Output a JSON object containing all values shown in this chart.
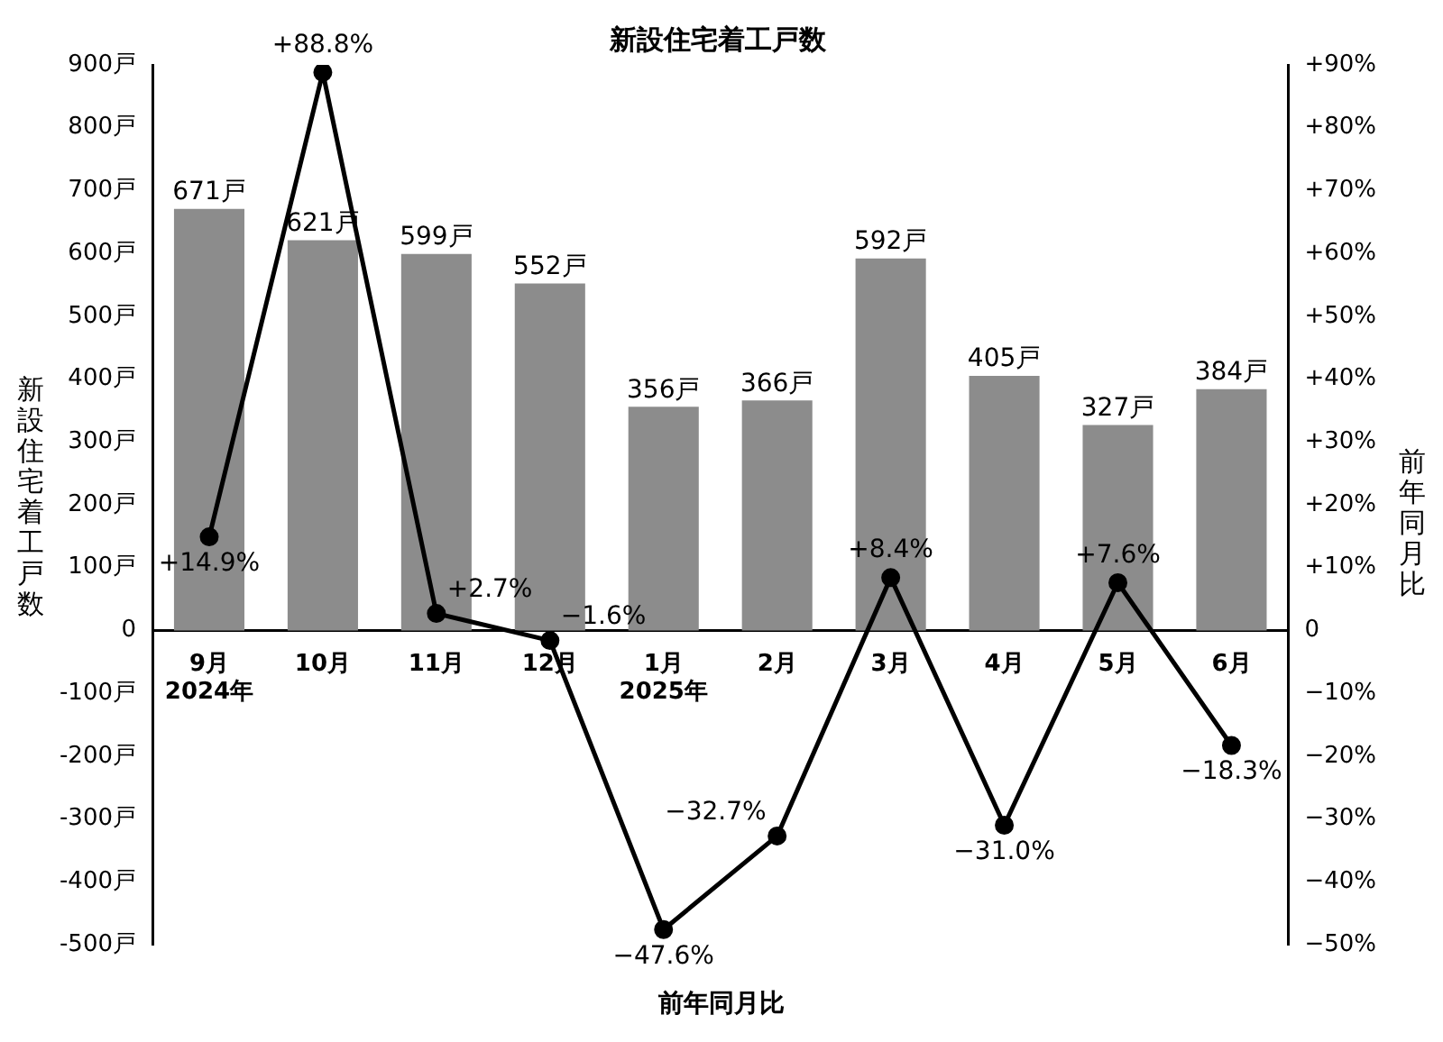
{
  "chart_data": {
    "type": "bar",
    "title": "新設住宅着工戸数",
    "ylabel": "新設住宅着工戸数",
    "y2label": "前年同月比",
    "categories": [
      "9月\n2024年",
      "10月",
      "11月",
      "12月",
      "1月\n2025年",
      "2月",
      "3月",
      "4月",
      "5月",
      "6月"
    ],
    "series": [
      {
        "color": "#8c8c8c",
        "values": [
          671,
          621,
          599,
          552,
          356,
          366,
          592,
          405,
          327,
          384
        ],
        "value_labels": [
          "671戸",
          "621戸",
          "599戸",
          "552戸",
          "356戸",
          "366戸",
          "592戸",
          "405戸",
          "327戸",
          "384戸"
        ]
      },
      {
        "type": "line",
        "name": "前年同月比",
        "axis": "y2",
        "color": "#000000",
        "values": [
          14.9,
          88.8,
          2.7,
          -1.6,
          -47.6,
          -32.7,
          8.4,
          -31.0,
          7.6,
          -18.3
        ],
        "value_labels": [
          "+14.9%",
          "+88.8%",
          "+2.7%",
          "−1.6%",
          "−47.6%",
          "−32.7%",
          "+8.4%",
          "−31.0%",
          "+7.6%",
          "−18.3%"
        ]
      }
    ],
    "ylim": [
      -500,
      900
    ],
    "yticks": [
      {
        "value": -500,
        "label": "-500戸"
      },
      {
        "value": -400,
        "label": "-400戸"
      },
      {
        "value": -300,
        "label": "-300戸"
      },
      {
        "value": -200,
        "label": "-200戸"
      },
      {
        "value": -100,
        "label": "-100戸"
      },
      0,
      {
        "value": 100,
        "label": "100戸"
      },
      {
        "value": 200,
        "label": "200戸"
      },
      {
        "value": 300,
        "label": "300戸"
      },
      {
        "value": 400,
        "label": "400戸"
      },
      {
        "value": 500,
        "label": "500戸"
      },
      {
        "value": 600,
        "label": "600戸"
      },
      {
        "value": 700,
        "label": "700戸"
      },
      {
        "value": 800,
        "label": "800戸"
      },
      {
        "value": 900,
        "label": "900戸"
      }
    ],
    "y2lim": [
      -50,
      90
    ],
    "y2ticks": [
      {
        "value": -50,
        "label": "−50%"
      },
      {
        "value": -40,
        "label": "−40%"
      },
      {
        "value": -30,
        "label": "−30%"
      },
      {
        "value": -20,
        "label": "−20%"
      },
      {
        "value": -10,
        "label": "−10%"
      },
      0,
      {
        "value": 10,
        "label": "+10%"
      },
      {
        "value": 20,
        "label": "+20%"
      },
      {
        "value": 30,
        "label": "+30%"
      },
      {
        "value": 40,
        "label": "+40%"
      },
      {
        "value": 50,
        "label": "+50%"
      },
      {
        "value": 60,
        "label": "+60%"
      },
      {
        "value": 70,
        "label": "+70%"
      },
      {
        "value": 80,
        "label": "+80%"
      },
      {
        "value": 90,
        "label": "+90%"
      }
    ],
    "marker": "circle",
    "line_style": "solid",
    "grid": false,
    "legend": false
  }
}
